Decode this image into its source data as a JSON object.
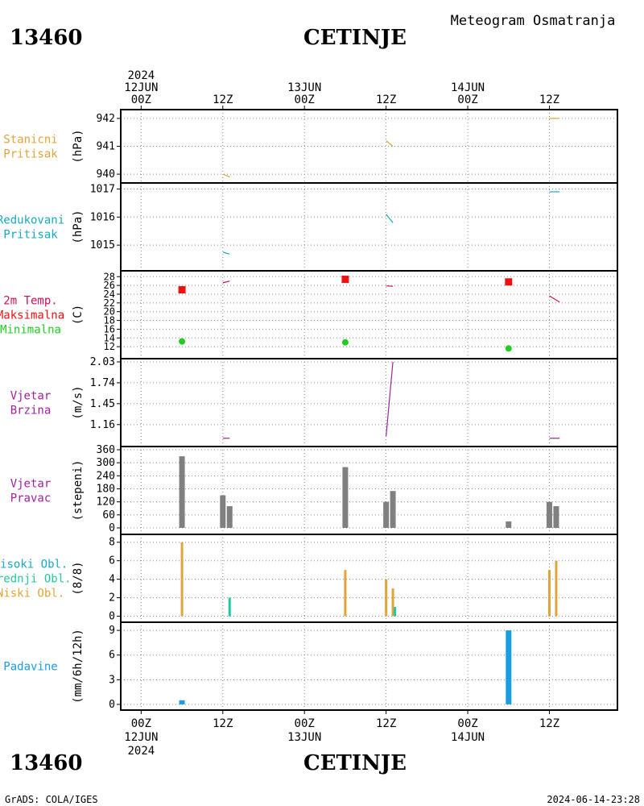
{
  "header": {
    "station_id": "13460",
    "station_name": "CETINJE",
    "product": "Meteogram Osmatranja",
    "credit": "GrADS: COLA/IGES",
    "timestamp": "2024-06-14-23:28"
  },
  "time_axis": {
    "year": "2024",
    "top_labels": [
      {
        "t": 0,
        "lines": [
          "2024",
          "12JUN",
          "00Z"
        ]
      },
      {
        "t": 12,
        "lines": [
          "12Z"
        ]
      },
      {
        "t": 24,
        "lines": [
          "13JUN",
          "00Z"
        ]
      },
      {
        "t": 36,
        "lines": [
          "12Z"
        ]
      },
      {
        "t": 48,
        "lines": [
          "14JUN",
          "00Z"
        ]
      },
      {
        "t": 60,
        "lines": [
          "12Z"
        ]
      }
    ],
    "bottom_labels": [
      {
        "t": 0,
        "lines": [
          "00Z",
          "12JUN",
          "2024"
        ]
      },
      {
        "t": 12,
        "lines": [
          "12Z"
        ]
      },
      {
        "t": 24,
        "lines": [
          "00Z",
          "13JUN"
        ]
      },
      {
        "t": 36,
        "lines": [
          "12Z"
        ]
      },
      {
        "t": 48,
        "lines": [
          "00Z",
          "14JUN"
        ]
      },
      {
        "t": 60,
        "lines": [
          "12Z"
        ]
      }
    ]
  },
  "colors": {
    "orange": "#e0a43a",
    "cyan": "#1aa8c0",
    "crimson": "#d01050",
    "red": "#ee1111",
    "green": "#22cc22",
    "purple": "#a020a0",
    "gray": "#808080",
    "teal": "#22c8a0",
    "blue": "#1a9ee0"
  },
  "chart_data": [
    {
      "id": "stanicni",
      "type": "line",
      "labels": [
        {
          "text": "Stanicni",
          "color": "#e0a43a"
        },
        {
          "text": "Pritisak",
          "color": "#e0a43a"
        }
      ],
      "ylabel": "(hPa)",
      "ylim": [
        939.8,
        942.2
      ],
      "yticks": [
        940,
        941,
        942
      ],
      "series": [
        {
          "color": "#e0a43a",
          "points": [
            [
              12,
              940.0
            ],
            [
              13,
              939.9
            ]
          ]
        },
        {
          "color": "#e0a43a",
          "points": [
            [
              36,
              941.2
            ],
            [
              37,
              941.0
            ]
          ]
        },
        {
          "color": "#e0a43a",
          "points": [
            [
              60,
              942.0
            ],
            [
              61.5,
              942.0
            ]
          ]
        }
      ]
    },
    {
      "id": "redukovani",
      "type": "line",
      "labels": [
        {
          "text": "Redukovani",
          "color": "#1aa8c0"
        },
        {
          "text": "Pritisak",
          "color": "#1aa8c0"
        }
      ],
      "ylabel": "(hPa)",
      "ylim": [
        1014.2,
        1017.1
      ],
      "yticks": [
        1015,
        1016,
        1017
      ],
      "series": [
        {
          "color": "#1aa8c0",
          "points": [
            [
              12,
              1014.75
            ],
            [
              13,
              1014.68
            ]
          ]
        },
        {
          "color": "#1aa8c0",
          "points": [
            [
              36,
              1016.1
            ],
            [
              37,
              1015.8
            ]
          ]
        },
        {
          "color": "#1aa8c0",
          "points": [
            [
              60,
              1016.9
            ],
            [
              61.5,
              1016.9
            ]
          ]
        }
      ]
    },
    {
      "id": "temp",
      "type": "line",
      "labels": [
        {
          "text": "2m Temp.",
          "color": "#d01050"
        },
        {
          "text": "Maksimalna",
          "color": "#ee1111"
        },
        {
          "text": "Minimalna",
          "color": "#22cc22"
        }
      ],
      "ylabel": "(C)",
      "ylim": [
        10,
        28.6
      ],
      "yticks": [
        12,
        14,
        16,
        18,
        20,
        22,
        24,
        26,
        28
      ],
      "series": [
        {
          "color": "#d01050",
          "points": [
            [
              12,
              26.6
            ],
            [
              13,
              27.0
            ]
          ]
        },
        {
          "color": "#d01050",
          "points": [
            [
              36,
              25.9
            ],
            [
              37,
              25.8
            ]
          ]
        },
        {
          "color": "#d01050",
          "points": [
            [
              60,
              23.6
            ],
            [
              61.5,
              22.2
            ]
          ]
        }
      ],
      "max_markers": [
        [
          6,
          25.0
        ],
        [
          30,
          27.4
        ],
        [
          54,
          26.8
        ]
      ],
      "min_markers": [
        [
          6,
          13.2
        ],
        [
          30,
          13.0
        ],
        [
          54,
          11.6
        ]
      ]
    },
    {
      "id": "brzina",
      "type": "line",
      "labels": [
        {
          "text": "Vjetar",
          "color": "#a020a0"
        },
        {
          "text": "Brzina",
          "color": "#a020a0"
        }
      ],
      "ylabel": "(m/s)",
      "ylim": [
        0.9,
        2.03
      ],
      "yticks": [
        1.16,
        1.45,
        1.74,
        2.03
      ],
      "series": [
        {
          "color": "#a020a0",
          "points": [
            [
              12,
              0.97
            ],
            [
              13,
              0.97
            ]
          ]
        },
        {
          "color": "#a020a0",
          "points": [
            [
              36,
              1.0
            ],
            [
              37,
              2.03
            ]
          ]
        },
        {
          "color": "#a020a0",
          "points": [
            [
              60,
              0.97
            ],
            [
              61.5,
              0.97
            ]
          ]
        }
      ]
    },
    {
      "id": "pravac",
      "type": "bar",
      "labels": [
        {
          "text": "Vjetar",
          "color": "#a020a0"
        },
        {
          "text": "Pravac",
          "color": "#a020a0"
        }
      ],
      "ylabel": "(stepeni)",
      "ylim": [
        -15,
        360
      ],
      "yticks": [
        0,
        60,
        120,
        180,
        240,
        300,
        360
      ],
      "bars": [
        {
          "t": 6,
          "value": 330,
          "color": "#808080"
        },
        {
          "t": 12,
          "value": 150,
          "color": "#808080"
        },
        {
          "t": 13,
          "value": 100,
          "color": "#808080"
        },
        {
          "t": 30,
          "value": 280,
          "color": "#808080"
        },
        {
          "t": 36,
          "value": 120,
          "color": "#808080"
        },
        {
          "t": 37,
          "value": 170,
          "color": "#808080"
        },
        {
          "t": 54,
          "value": 30,
          "color": "#808080"
        },
        {
          "t": 60,
          "value": 120,
          "color": "#808080"
        },
        {
          "t": 61,
          "value": 100,
          "color": "#808080"
        }
      ],
      "bar_width": 7
    },
    {
      "id": "oblaci",
      "type": "bar",
      "labels": [
        {
          "text": "Visoki Obl.",
          "color": "#1aa8c0"
        },
        {
          "text": "Srednji Obl.",
          "color": "#22c8a0"
        },
        {
          "text": "Niski Obl.",
          "color": "#e0a43a"
        }
      ],
      "ylabel": "(8/8)",
      "ylim": [
        -0.3,
        8.5
      ],
      "yticks": [
        0,
        2,
        4,
        6,
        8
      ],
      "bars": [
        {
          "t": 6,
          "value": 8,
          "color": "#e0a43a"
        },
        {
          "t": 13,
          "value": 2,
          "color": "#22c8a0"
        },
        {
          "t": 30,
          "value": 5,
          "color": "#e0a43a"
        },
        {
          "t": 36,
          "value": 4,
          "color": "#e0a43a"
        },
        {
          "t": 37,
          "value": 3,
          "color": "#e0a43a"
        },
        {
          "t": 37.3,
          "value": 1,
          "color": "#22c8a0"
        },
        {
          "t": 60,
          "value": 5,
          "color": "#e0a43a"
        },
        {
          "t": 61,
          "value": 6,
          "color": "#e0a43a"
        }
      ],
      "bar_width": 3
    },
    {
      "id": "padavine",
      "type": "bar",
      "labels": [
        {
          "text": "Padavine",
          "color": "#1a9ee0"
        }
      ],
      "ylabel": "(mm/6h/12h)",
      "ylim": [
        -0.3,
        9.6
      ],
      "yticks": [
        0,
        3,
        6,
        9
      ],
      "bars": [
        {
          "t": 6,
          "value": 0.5,
          "color": "#1a9ee0"
        },
        {
          "t": 54,
          "value": 9,
          "color": "#1a9ee0"
        }
      ],
      "bar_width": 7
    }
  ]
}
